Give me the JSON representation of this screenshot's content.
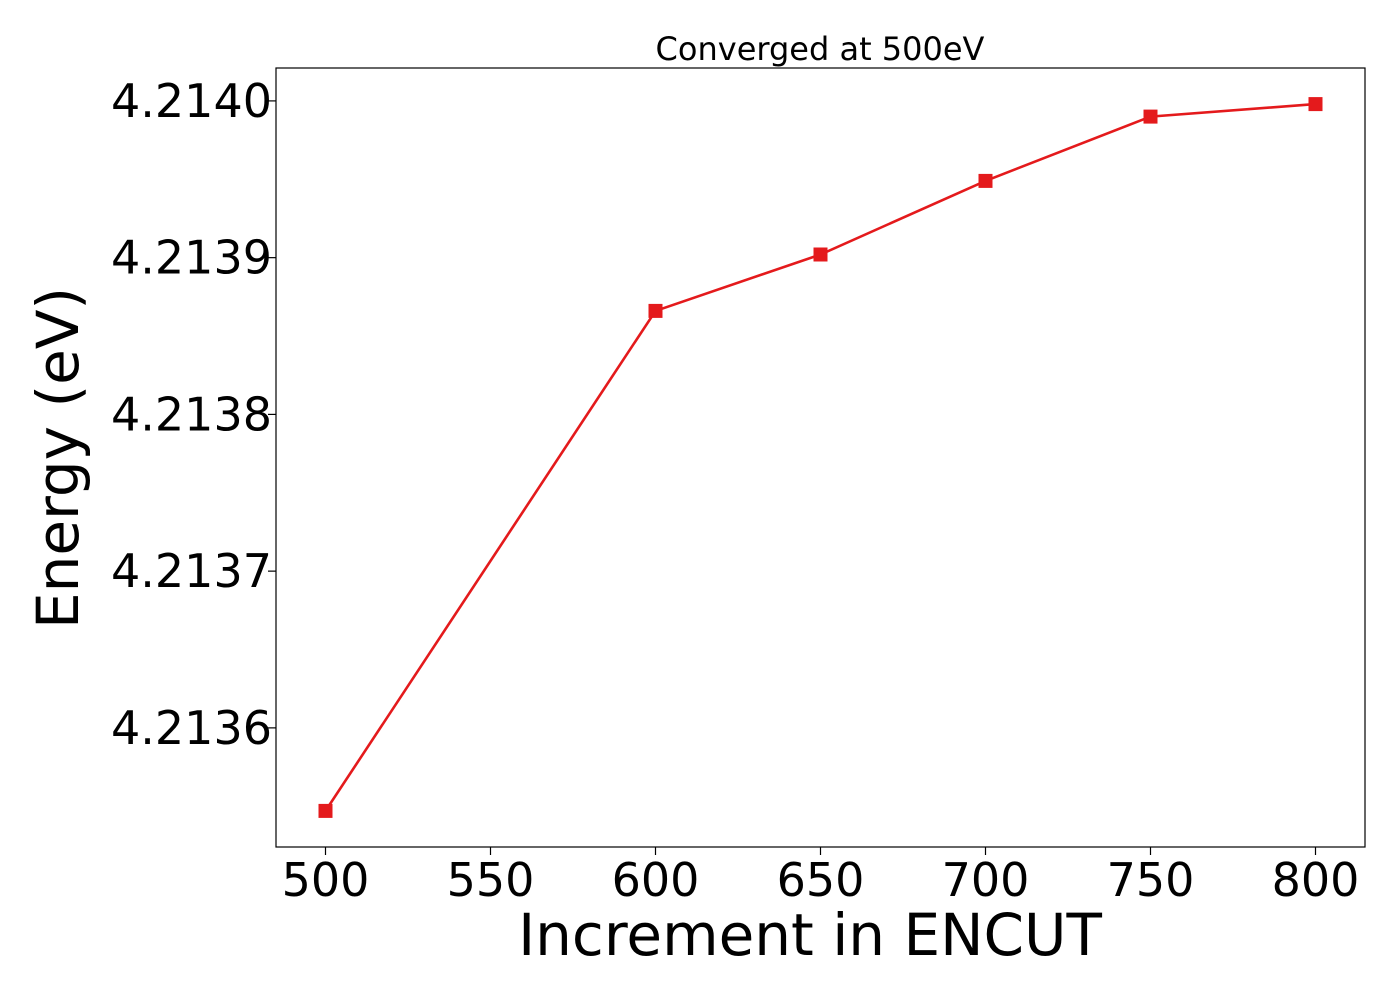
{
  "chart_data": {
    "type": "line",
    "title": "Converged at 500eV",
    "xlabel": "Increment in ENCUT",
    "ylabel": "Energy (eV)",
    "x": [
      500,
      600,
      650,
      700,
      750,
      800
    ],
    "series": [
      {
        "values": [
          4.213547,
          4.213866,
          4.213902,
          4.213949,
          4.21399,
          4.213998
        ],
        "color": "#e41a1c",
        "marker": "square"
      }
    ],
    "xlim": [
      485,
      815
    ],
    "ylim": [
      4.213524,
      4.214021
    ],
    "xticks": [
      500,
      550,
      600,
      650,
      700,
      750,
      800
    ],
    "yticks": [
      4.2136,
      4.2137,
      4.2138,
      4.2139,
      4.214
    ],
    "ytick_labels": [
      "4.2136",
      "4.2137",
      "4.2138",
      "4.2139",
      "4.2140"
    ],
    "grid": false,
    "legend": "none"
  }
}
